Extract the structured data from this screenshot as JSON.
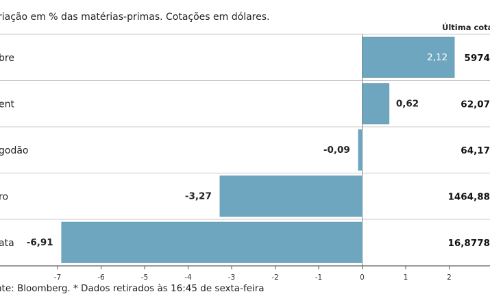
{
  "subtitle": "riação em % das matérias-primas. Cotações em dólares.",
  "last_quote_header": "Última cotaç",
  "source": "nte: Bloomberg.  * Dados retirados às 16:45 de sexta-feira",
  "colors": {
    "bar": "#6ea5bf",
    "bar_edge": "#5b8fa8",
    "grid": "#c8c8c8",
    "zero_line": "#888888"
  },
  "chart_data": {
    "type": "bar",
    "orientation": "horizontal",
    "categories": [
      "bre",
      "ent",
      "godão",
      "ro",
      "ata"
    ],
    "values": [
      2.12,
      0.62,
      -0.09,
      -3.27,
      -6.91
    ],
    "value_labels": [
      "2,12",
      "0,62",
      "-0,09",
      "-3,27",
      "-6,91"
    ],
    "last_quote": [
      "5974",
      "62,07",
      "64,17",
      "1464,88",
      "16,8778"
    ],
    "xlim": [
      -7,
      2
    ],
    "xticks": [
      "-7",
      "-6",
      "-5",
      "-4",
      "-3",
      "-2",
      "-1",
      "0",
      "1",
      "2"
    ],
    "grid": false
  }
}
